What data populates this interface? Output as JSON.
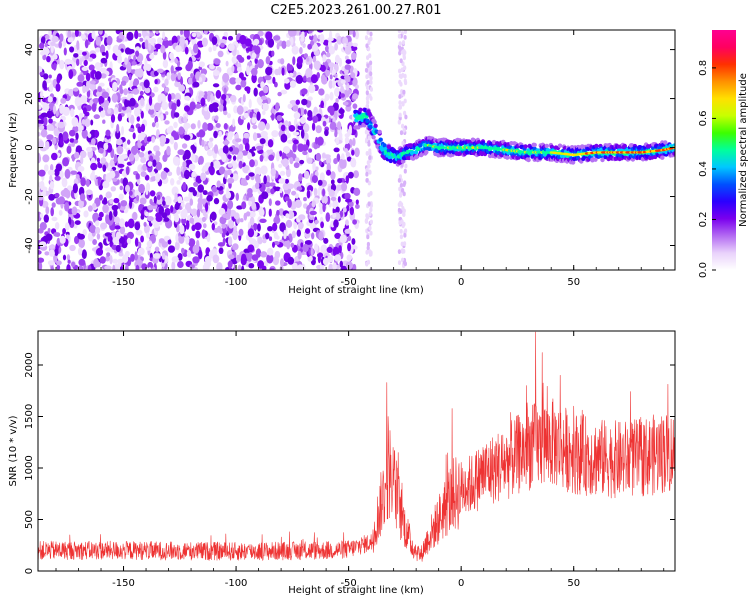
{
  "title": "C2E5.2023.261.00.27.R01",
  "chart_data": [
    {
      "type": "heatmap",
      "xlabel": "Height of straight line (km)",
      "ylabel": "Frequency (Hz)",
      "xlim": [
        -188,
        95
      ],
      "ylim": [
        -50,
        48
      ],
      "xticks": [
        -150,
        -100,
        -50,
        0,
        50
      ],
      "yticks": [
        -40,
        -20,
        0,
        20,
        40
      ],
      "colorbar": {
        "label": "Normalized spectral amplitude",
        "range": [
          0.0,
          0.95
        ],
        "ticks": [
          0.0,
          0.2,
          0.4,
          0.6,
          0.8
        ],
        "colormap": [
          "#ffffff",
          "#e9d2fb",
          "#b36af2",
          "#7a00ee",
          "#2a00ff",
          "#0050ff",
          "#00c8ff",
          "#00ff9c",
          "#3cff00",
          "#c8ff00",
          "#ffe000",
          "#ff9000",
          "#ff3000",
          "#ff0060",
          "#ff0090"
        ]
      },
      "series": [
        {
          "description_points": [
            [
              -46,
              12
            ],
            [
              -42,
              13
            ],
            [
              -38,
              6
            ],
            [
              -35,
              0
            ],
            [
              -32,
              -3
            ],
            [
              -28,
              -4
            ],
            [
              -24,
              -2
            ],
            [
              -20,
              -1
            ],
            [
              -15,
              1
            ],
            [
              -10,
              0
            ],
            [
              -5,
              0
            ],
            [
              0,
              0
            ],
            [
              10,
              0
            ],
            [
              20,
              -1
            ],
            [
              30,
              -2
            ],
            [
              40,
              -2
            ],
            [
              50,
              -3
            ],
            [
              60,
              -2
            ],
            [
              70,
              -2
            ],
            [
              80,
              -2
            ],
            [
              90,
              -1
            ],
            [
              95,
              0
            ]
          ]
        }
      ],
      "grid": false
    },
    {
      "type": "line",
      "xlabel": "Height of straight line (km)",
      "ylabel": "SNR (10 * v/v)",
      "xlim": [
        -188,
        95
      ],
      "ylim": [
        0,
        2330
      ],
      "xticks": [
        -150,
        -100,
        -50,
        0,
        50
      ],
      "yticks": [
        0,
        500,
        1000,
        1500,
        2000
      ],
      "color": "#ee3333",
      "series": [
        {
          "envelope_points": [
            [
              -188,
              200
            ],
            [
              -150,
              200
            ],
            [
              -100,
              190
            ],
            [
              -60,
              200
            ],
            [
              -50,
              210
            ],
            [
              -40,
              280
            ],
            [
              -35,
              700
            ],
            [
              -32,
              1000
            ],
            [
              -30,
              850
            ],
            [
              -26,
              500
            ],
            [
              -22,
              250
            ],
            [
              -18,
              150
            ],
            [
              -15,
              300
            ],
            [
              -10,
              500
            ],
            [
              -5,
              700
            ],
            [
              0,
              800
            ],
            [
              5,
              850
            ],
            [
              10,
              950
            ],
            [
              15,
              1000
            ],
            [
              20,
              1050
            ],
            [
              30,
              1200
            ],
            [
              40,
              1250
            ],
            [
              50,
              1150
            ],
            [
              60,
              1100
            ],
            [
              70,
              1080
            ],
            [
              80,
              1100
            ],
            [
              90,
              1150
            ],
            [
              95,
              1150
            ]
          ],
          "peaks": [
            [
              -33,
              1830
            ],
            [
              -32.5,
              1500
            ],
            [
              -28,
              1150
            ],
            [
              22,
              1540
            ],
            [
              29,
              1800
            ],
            [
              33,
              2320
            ],
            [
              36,
              2120
            ],
            [
              44,
              1900
            ],
            [
              50,
              1600
            ],
            [
              90,
              1460
            ]
          ]
        }
      ],
      "grid": false
    }
  ]
}
